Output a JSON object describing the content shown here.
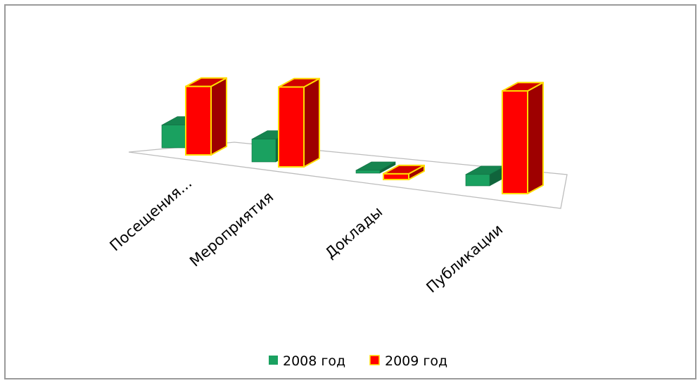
{
  "chart_data": {
    "type": "bar",
    "categories": [
      "Посещения...",
      "Мероприятия",
      "Доклады",
      "Публикации"
    ],
    "series": [
      {
        "name": "2008 год",
        "color": "#1aa160",
        "values": [
          4,
          4,
          0.5,
          2
        ]
      },
      {
        "name": "2009 год",
        "color": "#ff0000",
        "values": [
          12,
          14,
          1,
          18
        ]
      }
    ],
    "colors": {
      "bar_edge_2009": "#ffdd00",
      "floor": "#ffffff"
    },
    "legend_position": "bottom",
    "grid": false
  }
}
